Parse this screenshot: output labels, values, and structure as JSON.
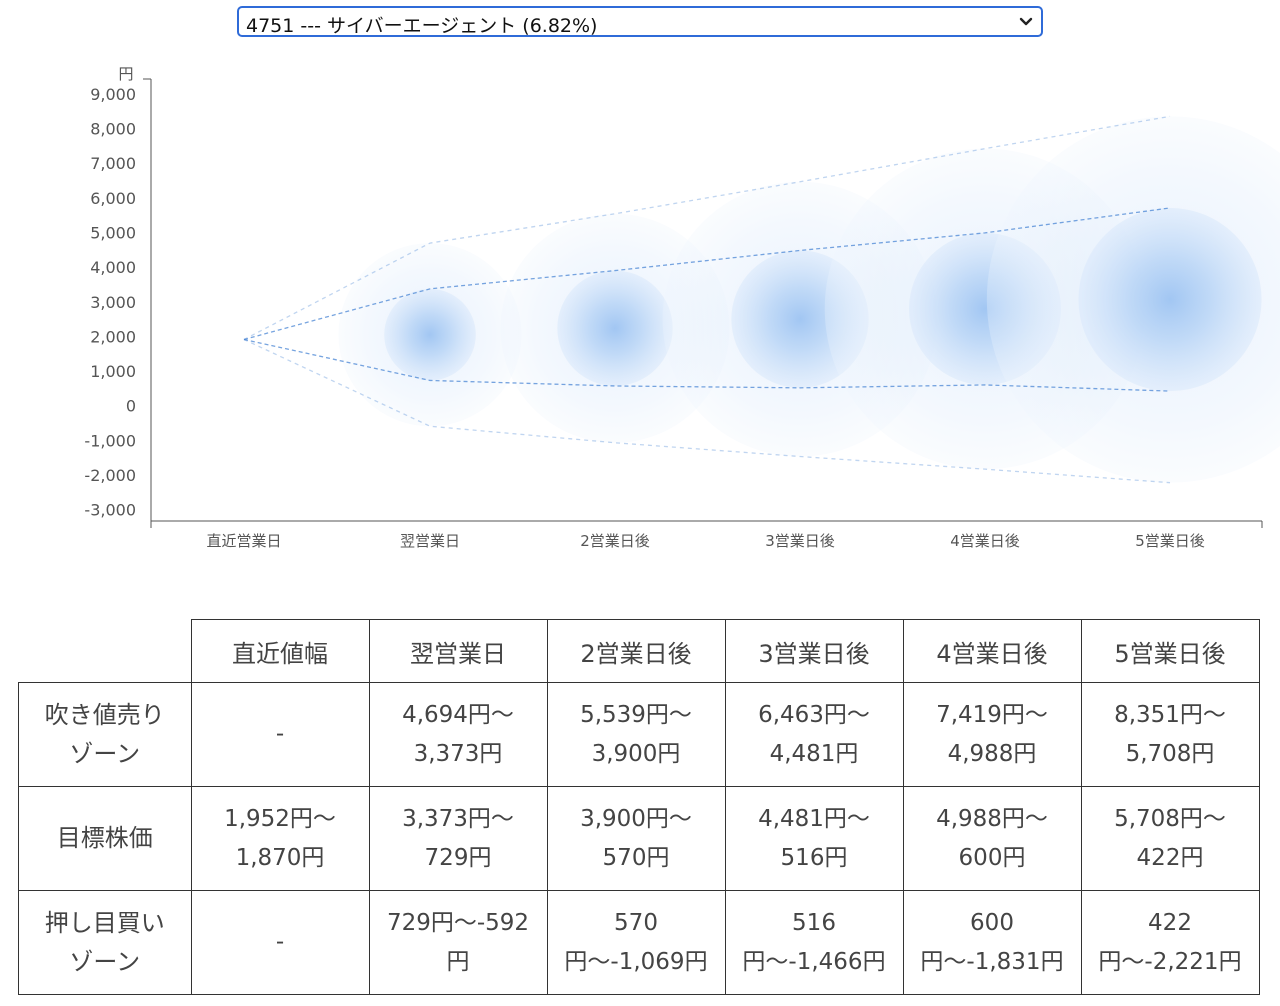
{
  "selector": {
    "selected": "4751 --- サイバーエージェント (6.82%)"
  },
  "chart_data": {
    "type": "scatter",
    "unit_label": "円",
    "y_ticks": [
      "9,000",
      "8,000",
      "7,000",
      "6,000",
      "5,000",
      "4,000",
      "3,000",
      "2,000",
      "1,000",
      "0",
      "-1,000",
      "-2,000",
      "-3,000"
    ],
    "ylim": [
      -3000,
      9000
    ],
    "categories": [
      "直近営業日",
      "翌営業日",
      "2営業日後",
      "3営業日後",
      "4営業日後",
      "5営業日後"
    ],
    "center": [
      1911,
      2051,
      2235,
      2499,
      2794,
      3065
    ],
    "inner_upper": [
      1952,
      3373,
      3900,
      4481,
      4988,
      5708
    ],
    "inner_lower": [
      1870,
      729,
      570,
      516,
      600,
      422
    ],
    "outer_upper": [
      1952,
      4694,
      5539,
      6463,
      7419,
      8351
    ],
    "outer_lower": [
      1870,
      -592,
      -1069,
      -1466,
      -1831,
      -2221
    ],
    "colors": {
      "bubble": "#5a9be6",
      "guide": "#4a86d4"
    }
  },
  "table": {
    "headers": [
      "",
      "直近値幅",
      "翌営業日",
      "2営業日後",
      "3営業日後",
      "4営業日後",
      "5営業日後"
    ],
    "rows": [
      {
        "label": [
          "吹き値売り",
          "ゾーン"
        ],
        "cells": [
          [
            "-"
          ],
          [
            "4,694円〜",
            "3,373円"
          ],
          [
            "5,539円〜",
            "3,900円"
          ],
          [
            "6,463円〜",
            "4,481円"
          ],
          [
            "7,419円〜",
            "4,988円"
          ],
          [
            "8,351円〜",
            "5,708円"
          ]
        ]
      },
      {
        "label": [
          "目標株価"
        ],
        "cells": [
          [
            "1,952円〜",
            "1,870円"
          ],
          [
            "3,373円〜",
            "729円"
          ],
          [
            "3,900円〜",
            "570円"
          ],
          [
            "4,481円〜",
            "516円"
          ],
          [
            "4,988円〜",
            "600円"
          ],
          [
            "5,708円〜",
            "422円"
          ]
        ]
      },
      {
        "label": [
          "押し目買い",
          "ゾーン"
        ],
        "cells": [
          [
            "-"
          ],
          [
            "729円〜-592",
            "円"
          ],
          [
            "570",
            "円〜-1,069円"
          ],
          [
            "516",
            "円〜-1,466円"
          ],
          [
            "600",
            "円〜-1,831円"
          ],
          [
            "422",
            "円〜-2,221円"
          ]
        ]
      }
    ]
  }
}
